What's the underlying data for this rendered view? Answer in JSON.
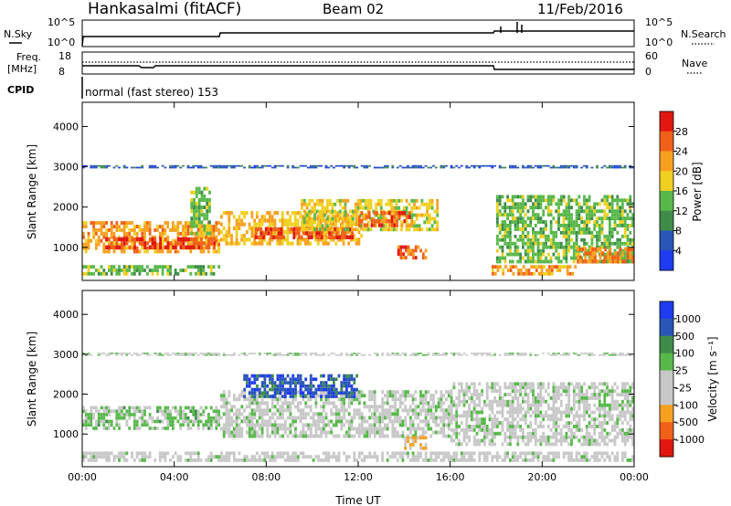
{
  "header": {
    "station": "Hankasalmi (fitACF)",
    "beam": "Beam 02",
    "date": "11/Feb/2016"
  },
  "panels": {
    "nsky": {
      "left_label": "N.Sky",
      "left_ticks": [
        "10^5",
        "10^0"
      ],
      "right_ticks": [
        "10^5",
        "10^0"
      ],
      "right_label": "N.Search"
    },
    "freq": {
      "left_label_1": "Freq.",
      "left_label_2": "[MHz]",
      "left_ticks": [
        "18",
        "8"
      ],
      "right_ticks": [
        "60",
        "0"
      ],
      "right_label": "Nave"
    },
    "cpid": {
      "label": "CPID",
      "text": "normal (fast stereo) 153"
    }
  },
  "colors": {
    "power": [
      "#1f3cf0",
      "#2a56b8",
      "#3f8c4a",
      "#58b84a",
      "#f0d020",
      "#f7a020",
      "#f06018",
      "#e01810"
    ],
    "velocity": [
      "#e01810",
      "#f06018",
      "#f7a020",
      "#c8c8c8",
      "#c8c8c8",
      "#58b84a",
      "#3f8c4a",
      "#2a56b8",
      "#1f3cf0"
    ]
  },
  "chart_data": [
    {
      "type": "heatmap",
      "title": "",
      "ylabel": "Slant Range [km]",
      "xlabel": "",
      "x_ticks": [
        "00:00",
        "04:00",
        "08:00",
        "12:00",
        "16:00",
        "20:00",
        "00:00"
      ],
      "y_ticks": [
        "1000",
        "2000",
        "3000",
        "4000"
      ],
      "xlim_hours": [
        0,
        24
      ],
      "ylim": [
        180,
        4600
      ],
      "colorbar": {
        "label": "Power [dB]",
        "ticks": [
          "4",
          "8",
          "12",
          "16",
          "20",
          "24",
          "28"
        ],
        "range": [
          0,
          32
        ]
      },
      "regions": [
        {
          "name": "main-band-early",
          "t0": 0.0,
          "t1": 6.0,
          "r0": 850,
          "r1": 1650,
          "val": 22
        },
        {
          "name": "main-band-core",
          "t0": 1.0,
          "t1": 5.8,
          "r0": 950,
          "r1": 1250,
          "val": 28
        },
        {
          "name": "main-band-mid",
          "t0": 6.0,
          "t1": 12.2,
          "r0": 1050,
          "r1": 1900,
          "val": 20
        },
        {
          "name": "main-band-mid-core",
          "t0": 7.5,
          "t1": 11.8,
          "r0": 1200,
          "r1": 1500,
          "val": 27
        },
        {
          "name": "upper-band",
          "t0": 9.5,
          "t1": 15.5,
          "r0": 1400,
          "r1": 2200,
          "val": 18
        },
        {
          "name": "upper-core",
          "t0": 12.0,
          "t1": 14.4,
          "r0": 1500,
          "r1": 1900,
          "val": 26
        },
        {
          "name": "spike-0500",
          "t0": 4.7,
          "t1": 5.6,
          "r0": 1300,
          "r1": 2500,
          "val": 14
        },
        {
          "name": "near-patch",
          "t0": 13.7,
          "t1": 15.0,
          "r0": 700,
          "r1": 1050,
          "val": 26
        },
        {
          "name": "ray-0300",
          "t0": 0.0,
          "t1": 24.0,
          "r0": 2960,
          "r1": 3040,
          "val": 6
        },
        {
          "name": "low-gate-left",
          "t0": 0.0,
          "t1": 6.0,
          "r0": 300,
          "r1": 560,
          "val": 14
        },
        {
          "name": "low-gate-right",
          "t0": 17.8,
          "t1": 21.5,
          "r0": 300,
          "r1": 560,
          "val": 22
        },
        {
          "name": "tail-descend",
          "t0": 18.0,
          "t1": 24.0,
          "r0": 600,
          "r1": 2300,
          "val": 14
        },
        {
          "name": "tail-end",
          "t0": 21.5,
          "t1": 24.0,
          "r0": 600,
          "r1": 1000,
          "val": 24
        }
      ]
    },
    {
      "type": "heatmap",
      "title": "",
      "ylabel": "Slant Range [km]",
      "xlabel": "Time UT",
      "x_ticks": [
        "00:00",
        "04:00",
        "08:00",
        "12:00",
        "16:00",
        "20:00",
        "00:00"
      ],
      "y_ticks": [
        "1000",
        "2000",
        "3000",
        "4000"
      ],
      "xlim_hours": [
        0,
        24
      ],
      "ylim": [
        180,
        4600
      ],
      "colorbar": {
        "label": "Velocity [m s⁻¹]",
        "ticks": [
          "1000",
          "500",
          "100",
          "25",
          "-25",
          "-100",
          "-500",
          "-1000"
        ],
        "range": [
          -1000,
          1000
        ]
      },
      "regions": [
        {
          "name": "green-early",
          "t0": 0.0,
          "t1": 6.0,
          "r0": 1100,
          "r1": 1700,
          "val": 150
        },
        {
          "name": "grey-mid",
          "t0": 6.0,
          "t1": 16.0,
          "r0": 900,
          "r1": 2100,
          "val": 0
        },
        {
          "name": "blue-upper",
          "t0": 7.0,
          "t1": 12.0,
          "r0": 1900,
          "r1": 2500,
          "val": 700
        },
        {
          "name": "orange-patch",
          "t0": 14.0,
          "t1": 15.0,
          "r0": 600,
          "r1": 950,
          "val": -300
        },
        {
          "name": "grey-ray",
          "t0": 0.0,
          "t1": 24.0,
          "r0": 2960,
          "r1": 3040,
          "val": 0
        },
        {
          "name": "low-gates",
          "t0": 0.0,
          "t1": 24.0,
          "r0": 300,
          "r1": 560,
          "val": -50
        },
        {
          "name": "tail-grey",
          "t0": 16.0,
          "t1": 24.0,
          "r0": 700,
          "r1": 2300,
          "val": 0
        }
      ]
    }
  ]
}
